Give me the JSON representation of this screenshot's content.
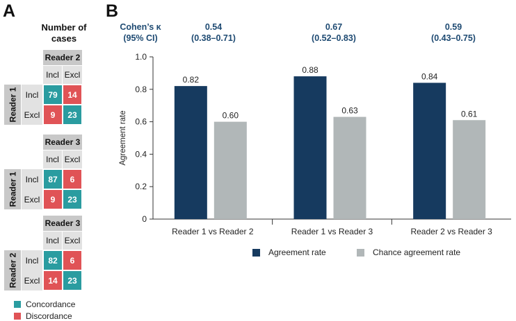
{
  "panel_a": {
    "letter": "A",
    "title_line1": "Number of",
    "title_line2": "cases",
    "col_incl": "Incl",
    "col_excl": "Excl",
    "row_incl": "Incl",
    "row_excl": "Excl",
    "matrices": [
      {
        "col_reader": "Reader 2",
        "row_reader": "Reader 1",
        "cells": [
          {
            "value": "79",
            "type": "concordance"
          },
          {
            "value": "14",
            "type": "discordance"
          },
          {
            "value": "9",
            "type": "discordance"
          },
          {
            "value": "23",
            "type": "concordance"
          }
        ]
      },
      {
        "col_reader": "Reader 3",
        "row_reader": "Reader 1",
        "cells": [
          {
            "value": "87",
            "type": "concordance"
          },
          {
            "value": "6",
            "type": "discordance"
          },
          {
            "value": "9",
            "type": "discordance"
          },
          {
            "value": "23",
            "type": "concordance"
          }
        ]
      },
      {
        "col_reader": "Reader 3",
        "row_reader": "Reader 2",
        "cells": [
          {
            "value": "82",
            "type": "concordance"
          },
          {
            "value": "6",
            "type": "discordance"
          },
          {
            "value": "14",
            "type": "discordance"
          },
          {
            "value": "23",
            "type": "concordance"
          }
        ]
      }
    ],
    "legend": [
      {
        "label": "Concordance",
        "color": "#2a9ca0"
      },
      {
        "label": "Discordance",
        "color": "#e05356"
      }
    ]
  },
  "panel_b": {
    "letter": "B",
    "kappa_header": {
      "line1": "Cohen’s κ",
      "line2": "(95% CI)"
    },
    "kappa_values": [
      {
        "value": "0.54",
        "ci": "(0.38–0.71)"
      },
      {
        "value": "0.67",
        "ci": "(0.52–0.83)"
      },
      {
        "value": "0.59",
        "ci": "(0.43–0.75)"
      }
    ]
  },
  "colors": {
    "agreement": "#163a5f",
    "chance": "#b1b7b8",
    "concordance": "#2a9ca0",
    "discordance": "#e05356",
    "kappa_text": "#1e4a72"
  },
  "chart_data": {
    "type": "bar",
    "title": "",
    "xlabel": "",
    "ylabel": "Agreement rate",
    "ylim": [
      0,
      1.0
    ],
    "yticks": [
      "0",
      "0.2",
      "0.4",
      "0.6",
      "0.8",
      "1.0"
    ],
    "categories": [
      "Reader 1 vs Reader 2",
      "Reader 1 vs Reader 3",
      "Reader 2 vs Reader 3"
    ],
    "series": [
      {
        "name": "Agreement rate",
        "values": [
          0.82,
          0.88,
          0.84
        ],
        "labels": [
          "0.82",
          "0.88",
          "0.84"
        ]
      },
      {
        "name": "Chance agreement rate",
        "values": [
          0.6,
          0.63,
          0.61
        ],
        "labels": [
          "0.60",
          "0.63",
          "0.61"
        ]
      }
    ],
    "legend_position": "bottom"
  }
}
